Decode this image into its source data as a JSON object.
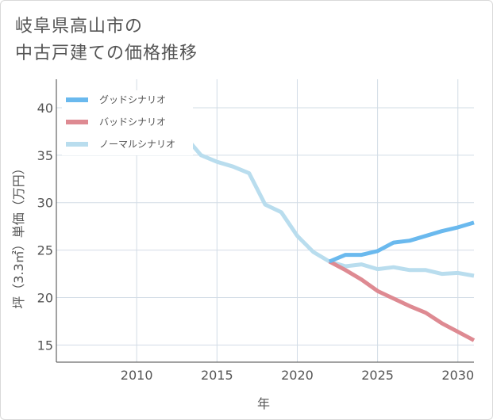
{
  "title_lines": [
    "岐阜県高山市の",
    "中古戸建ての価格推移"
  ],
  "colors": {
    "good": "#6ab9ee",
    "bad": "#de8a92",
    "normal": "#b9ddee",
    "grid": "#d2dce6",
    "axis": "#444444"
  },
  "chart_data": {
    "type": "line",
    "title": "岐阜県高山市の 中古戸建ての価格推移",
    "xlabel": "年",
    "ylabel": "坪（3.3㎡）単価（万円）",
    "xlim": [
      2005,
      2031
    ],
    "ylim": [
      13.2,
      43
    ],
    "x_ticks": [
      2010,
      2015,
      2020,
      2025,
      2030
    ],
    "y_ticks": [
      15,
      20,
      25,
      30,
      35,
      40
    ],
    "grid": true,
    "legend_position": "top-left",
    "series": [
      {
        "name": "グッドシナリオ",
        "color": "#6ab9ee",
        "points": [
          [
            2022,
            23.8
          ],
          [
            2023,
            24.5
          ],
          [
            2024,
            24.5
          ],
          [
            2025,
            24.9
          ],
          [
            2026,
            25.8
          ],
          [
            2027,
            26.0
          ],
          [
            2028,
            26.5
          ],
          [
            2029,
            27.0
          ],
          [
            2030,
            27.4
          ],
          [
            2031,
            27.9
          ]
        ]
      },
      {
        "name": "バッドシナリオ",
        "color": "#de8a92",
        "points": [
          [
            2022,
            23.8
          ],
          [
            2023,
            22.9
          ],
          [
            2024,
            21.9
          ],
          [
            2025,
            20.7
          ],
          [
            2026,
            19.9
          ],
          [
            2027,
            19.1
          ],
          [
            2028,
            18.4
          ],
          [
            2029,
            17.3
          ],
          [
            2030,
            16.4
          ],
          [
            2031,
            15.5
          ]
        ]
      },
      {
        "name": "ノーマルシナリオ",
        "color": "#b9ddee",
        "points": [
          [
            2008,
            39.8
          ],
          [
            2009,
            40.6
          ],
          [
            2010,
            40.6
          ],
          [
            2011,
            41.3
          ],
          [
            2012,
            38.1
          ],
          [
            2013,
            37.0
          ],
          [
            2014,
            35.0
          ],
          [
            2015,
            34.3
          ],
          [
            2016,
            33.8
          ],
          [
            2017,
            33.1
          ],
          [
            2018,
            29.8
          ],
          [
            2019,
            29.0
          ],
          [
            2020,
            26.5
          ],
          [
            2021,
            24.8
          ],
          [
            2022,
            23.8
          ],
          [
            2023,
            23.3
          ],
          [
            2024,
            23.5
          ],
          [
            2025,
            23.0
          ],
          [
            2026,
            23.2
          ],
          [
            2027,
            22.9
          ],
          [
            2028,
            22.9
          ],
          [
            2029,
            22.5
          ],
          [
            2030,
            22.6
          ],
          [
            2031,
            22.3
          ]
        ]
      }
    ]
  }
}
